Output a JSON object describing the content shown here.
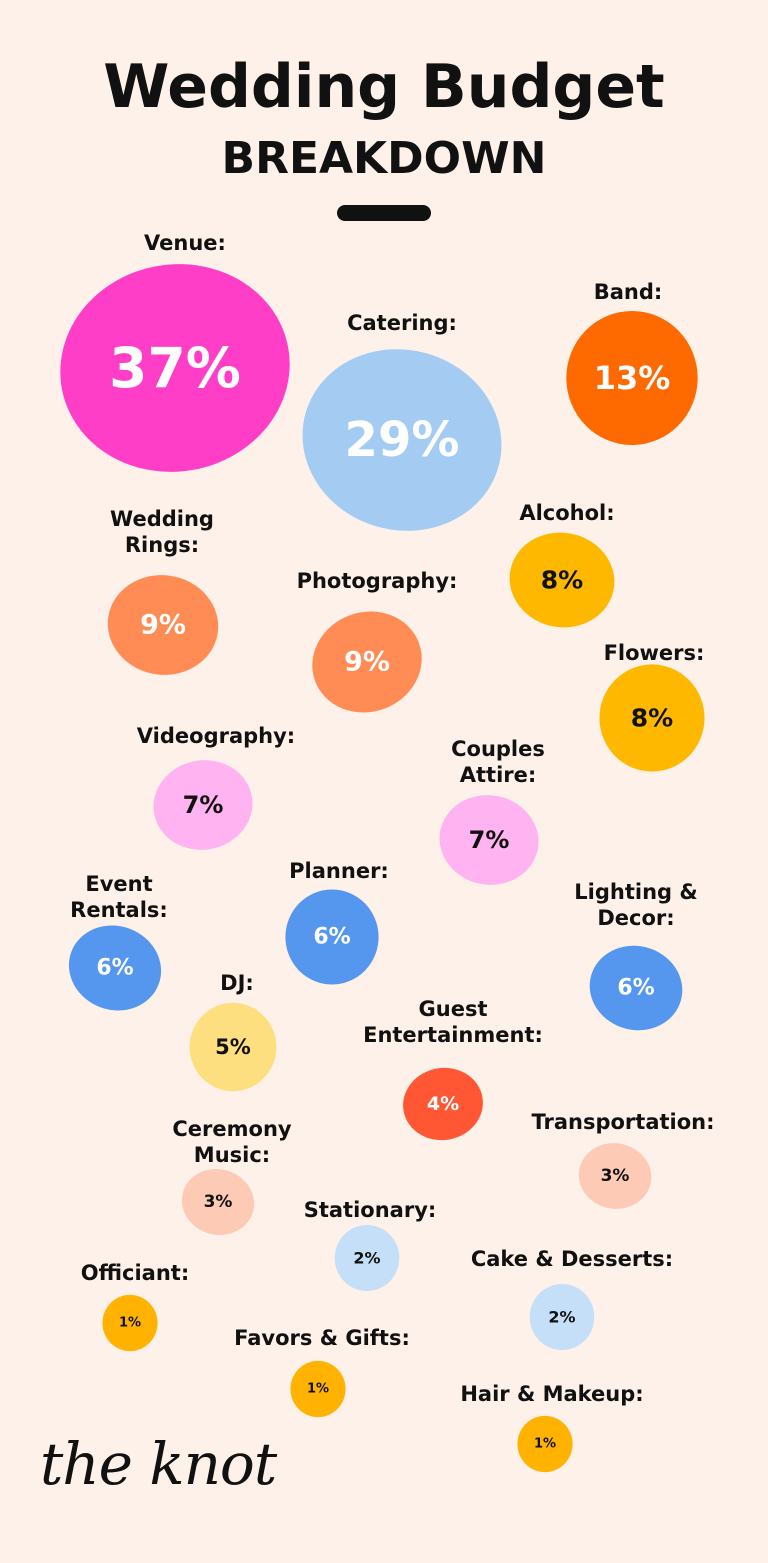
{
  "chart_data": {
    "type": "bubble",
    "title": "Wedding Budget",
    "subtitle": "BREAKDOWN",
    "categories": [
      "Venue:",
      "Catering:",
      "Band:",
      "Wedding Rings:",
      "Photography:",
      "Alcohol:",
      "Flowers:",
      "Videography:",
      "Couples Attire:",
      "Event Rentals:",
      "Planner:",
      "Lighting & Decor:",
      "DJ:",
      "Guest Entertainment:",
      "Ceremony Music:",
      "Transportation:",
      "Stationary:",
      "Cake & Desserts:",
      "Officiant:",
      "Favors & Gifts:",
      "Hair & Makeup:"
    ],
    "values": [
      37,
      29,
      13,
      9,
      9,
      8,
      8,
      7,
      7,
      6,
      6,
      6,
      5,
      4,
      3,
      3,
      2,
      2,
      1,
      1,
      1
    ],
    "value_labels": [
      "37%",
      "29%",
      "13%",
      "9%",
      "9%",
      "8%",
      "8%",
      "7%",
      "7%",
      "6%",
      "6%",
      "6%",
      "5%",
      "4%",
      "3%",
      "3%",
      "2%",
      "2%",
      "1%",
      "1%",
      "1%"
    ],
    "colors": [
      "#ff3ec8",
      "#a4cbf2",
      "#ff6a00",
      "#ff8c55",
      "#ff8c55",
      "#ffb800",
      "#ffb800",
      "#ffb3f0",
      "#ffb3f0",
      "#5596ee",
      "#5596ee",
      "#5596ee",
      "#fedf80",
      "#ff5733",
      "#fdcab5",
      "#fdcab5",
      "#c5dff8",
      "#c5dff8",
      "#ffb300",
      "#ffb300",
      "#ffb300"
    ],
    "value_label_colors": [
      "#ffffff",
      "#ffffff",
      "#ffffff",
      "#ffffff",
      "#ffffff",
      "#111111",
      "#111111",
      "#111111",
      "#111111",
      "#ffffff",
      "#ffffff",
      "#ffffff",
      "#111111",
      "#ffffff",
      "#111111",
      "#111111",
      "#111111",
      "#111111",
      "#111111",
      "#111111",
      "#111111"
    ],
    "logo": "the knot"
  }
}
